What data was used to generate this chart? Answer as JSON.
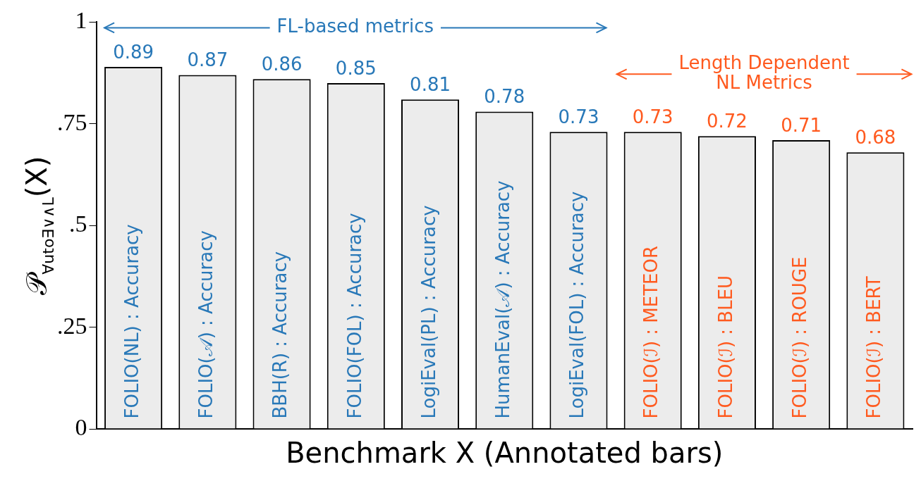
{
  "chart_data": {
    "type": "bar",
    "xlabel": "Benchmark X (Annotated bars)",
    "ylabel": "𝒫$_{∀uto∃∨∧L}$(X)",
    "categories": [
      "FOLIO(NL) : Accuracy",
      "FOLIO(𝒜) : Accuracy",
      "BBH(R) : Accuracy",
      "FOLIO(FOL) : Accuracy",
      "LogiEval(PL) : Accuracy",
      "HumanEval(𝒜) : Accuracy",
      "LogiEval(FOL) : Accuracy",
      "FOLIO(ℐ) : METEOR",
      "FOLIO(ℐ) : BLEU",
      "FOLIO(ℐ) : ROUGE",
      "FOLIO(ℐ) : BERT"
    ],
    "series": [
      {
        "color": "#ececec",
        "values": [
          0.89,
          0.87,
          0.86,
          0.85,
          0.81,
          0.78,
          0.73,
          null,
          null,
          null,
          null
        ]
      },
      {
        "color": "#ececec",
        "values": [
          null,
          null,
          null,
          null,
          null,
          null,
          null,
          0.73,
          0.72,
          0.71,
          0.68
        ]
      }
    ],
    "annotations": [
      "FL-based metrics",
      "Length Dependent\nNL Metrics"
    ],
    "data_labels": true,
    "ylim": [
      0,
      1
    ],
    "yticks": [
      0,
      {
        "value": 0.25,
        "label": ".25"
      },
      {
        "value": 0.5,
        "label": ".5"
      },
      {
        "value": 0.75,
        "label": ".75"
      },
      1
    ],
    "grid": false,
    "legend": false
  }
}
